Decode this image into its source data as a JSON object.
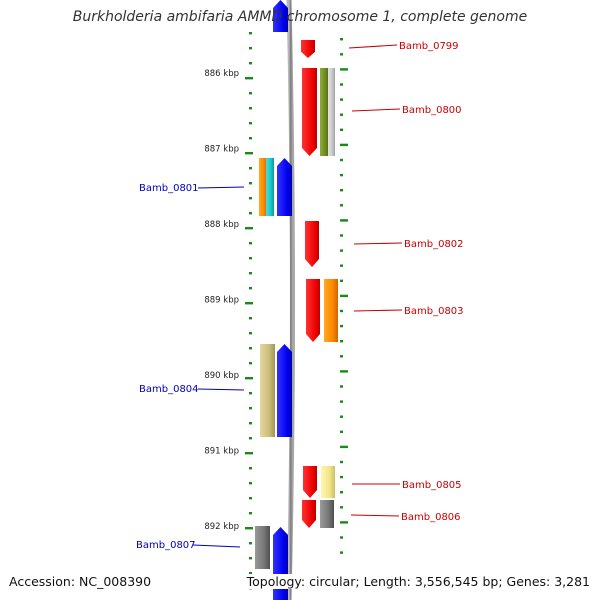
{
  "title": "Burkholderia ambifaria AMMD chromosome 1, complete genome",
  "footer": {
    "accession": "Accession: NC_008390",
    "topology": "Topology: circular; Length: 3,556,545 bp; Genes: 3,281"
  },
  "axis": {
    "unit": "kbp",
    "ticks": [
      {
        "value": 886,
        "label": "886 kbp"
      },
      {
        "value": 887,
        "label": "887 kbp"
      },
      {
        "value": 888,
        "label": "888 kbp"
      },
      {
        "value": 889,
        "label": "889 kbp"
      },
      {
        "value": 890,
        "label": "890 kbp"
      },
      {
        "value": 891,
        "label": "891 kbp"
      },
      {
        "value": 892,
        "label": "892 kbp"
      }
    ]
  },
  "colors": {
    "forward_strand_label": "#cc0000",
    "reverse_strand_label": "#0000bb",
    "backbone": "#777777",
    "tick": "#1a8a1a"
  },
  "genes": [
    {
      "name": "Bamb_0799",
      "strand": "+",
      "color": "#ff0000"
    },
    {
      "name": "Bamb_0800",
      "strand": "+",
      "color": "#ff0000"
    },
    {
      "name": "Bamb_0801",
      "strand": "-",
      "color": "#0000ff"
    },
    {
      "name": "Bamb_0802",
      "strand": "+",
      "color": "#ff0000"
    },
    {
      "name": "Bamb_0803",
      "strand": "+",
      "color": "#ff0000"
    },
    {
      "name": "Bamb_0804",
      "strand": "-",
      "color": "#0000ff"
    },
    {
      "name": "Bamb_0805",
      "strand": "+",
      "color": "#ff0000"
    },
    {
      "name": "Bamb_0806",
      "strand": "+",
      "color": "#ff0000"
    },
    {
      "name": "Bamb_0807",
      "strand": "-",
      "color": "#0000ff"
    }
  ]
}
